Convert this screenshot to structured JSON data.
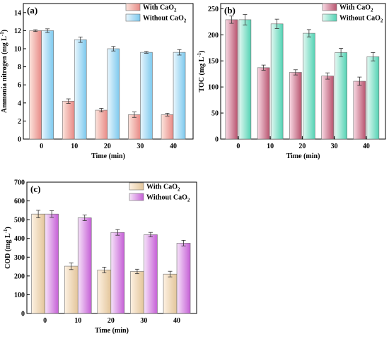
{
  "chart_data": [
    {
      "panel": "(a)",
      "type": "bar",
      "categories": [
        "0",
        "10",
        "20",
        "30",
        "40"
      ],
      "series": [
        {
          "name": "With CaO",
          "name_sub": "2",
          "values": [
            12.0,
            4.2,
            3.2,
            2.7,
            2.7
          ],
          "errors": [
            0.1,
            0.25,
            0.2,
            0.3,
            0.15
          ]
        },
        {
          "name": "Without CaO",
          "name_sub": "2",
          "values": [
            12.0,
            11.0,
            10.0,
            9.6,
            9.6
          ],
          "errors": [
            0.2,
            0.3,
            0.25,
            0.1,
            0.3
          ]
        }
      ],
      "xlabel": "Time (min)",
      "ylabel": "Ammonia nitrogen (mg L",
      "ylabel_sup": "-1",
      "ylabel_end": ")",
      "ylim": [
        0,
        15
      ],
      "yticks": [
        "0",
        "2",
        "4",
        "6",
        "8",
        "10",
        "12",
        "14"
      ],
      "ytick_values": [
        0,
        2,
        4,
        6,
        8,
        10,
        12,
        14
      ],
      "legend": "top-right",
      "colors": {
        "s1_light": "#fbe4dc",
        "s1_dark": "#e88a86",
        "s2_light": "#e9f6fd",
        "s2_dark": "#7dc9ee"
      }
    },
    {
      "panel": "(b)",
      "type": "bar",
      "categories": [
        "0",
        "10",
        "20",
        "30",
        "40"
      ],
      "series": [
        {
          "name": "With CaO",
          "name_sub": "2",
          "values": [
            229,
            137,
            128,
            121,
            111
          ],
          "errors": [
            7,
            5,
            5,
            6,
            8
          ]
        },
        {
          "name": "Without CaO",
          "name_sub": "2",
          "values": [
            229,
            221,
            203,
            166,
            158
          ],
          "errors": [
            10,
            9,
            7,
            8,
            8
          ]
        }
      ],
      "xlabel": "Time (min)",
      "ylabel": "TOC (mg L",
      "ylabel_sup": "-1",
      "ylabel_end": ")",
      "ylim": [
        0,
        260
      ],
      "yticks": [
        "0",
        "50",
        "100",
        "150",
        "200",
        "250"
      ],
      "ytick_values": [
        0,
        50,
        100,
        150,
        200,
        250
      ],
      "legend": "top-right",
      "colors": {
        "s1_light": "#f8d9e3",
        "s1_dark": "#b8546f",
        "s2_light": "#e3f8f2",
        "s2_dark": "#53d3b4"
      }
    },
    {
      "panel": "(c)",
      "type": "bar",
      "categories": [
        "0",
        "10",
        "20",
        "30",
        "40"
      ],
      "series": [
        {
          "name": "With CaO",
          "name_sub": "2",
          "values": [
            530,
            252,
            232,
            224,
            210
          ],
          "errors": [
            20,
            18,
            15,
            12,
            15
          ]
        },
        {
          "name": "Without CaO",
          "name_sub": "2",
          "values": [
            530,
            510,
            432,
            420,
            375
          ],
          "errors": [
            18,
            15,
            15,
            12,
            15
          ]
        }
      ],
      "xlabel": "Time (min)",
      "ylabel": "COD (mg L",
      "ylabel_sup": "-1",
      "ylabel_end": ")",
      "ylim": [
        0,
        700
      ],
      "yticks": [
        "0",
        "100",
        "200",
        "300",
        "400",
        "500",
        "600",
        "700"
      ],
      "ytick_values": [
        0,
        100,
        200,
        300,
        400,
        500,
        600,
        700
      ],
      "legend": "top-right",
      "colors": {
        "s1_light": "#fdf1e2",
        "s1_dark": "#e3c59a",
        "s2_light": "#f6e3f9",
        "s2_dark": "#c55fd6"
      }
    }
  ]
}
